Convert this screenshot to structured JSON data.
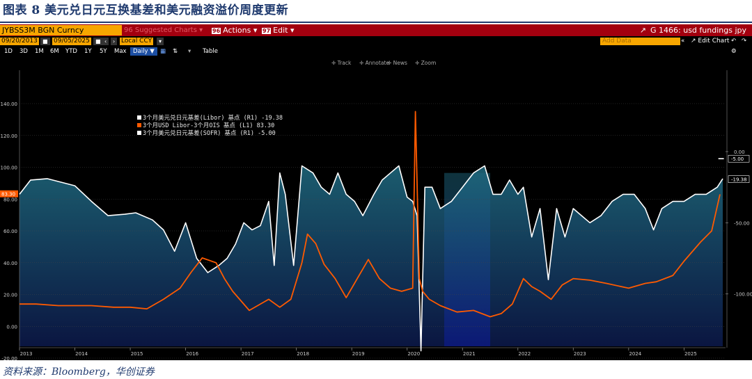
{
  "figure": {
    "title": "图表 8  美元兑日元互换基差和美元融资溢价周度更新",
    "source": "资料来源：Bloomberg，华创证券"
  },
  "toolbar": {
    "ticker": "JYBSS3M BGN Curncy",
    "suggested": "96 Suggested Charts ▾",
    "actions": "Actions ▾",
    "actions_key": "96",
    "edit": "Edit ▾",
    "edit_key": "97",
    "chart_title": "G 1466: usd fundings jpy",
    "date_start": "09/20/2013",
    "date_end": "09/05/2025",
    "currency": "Local CCY",
    "add_data": "Add Data",
    "edit_chart": "Edit Chart",
    "periods": [
      "1D",
      "3D",
      "1M",
      "6M",
      "YTD",
      "1Y",
      "5Y",
      "Max"
    ],
    "frequency": "Daily ▼",
    "table": "Table",
    "tools": [
      "Track",
      "Annotate",
      "News",
      "Zoom"
    ]
  },
  "colors": {
    "background": "#000000",
    "toolbar": "#a3000f",
    "orange": "#f7a600",
    "white_series": "#ffffff",
    "orange_series": "#ff5a00",
    "fill_top": "#1b5c6e",
    "fill_bottom": "#0a1440",
    "shade": "#0c1a8a"
  },
  "chart_data": {
    "type": "line",
    "legend": [
      {
        "label": "3个月美元兑日元基差(Libor) 基点 (R1)",
        "value": "-19.38",
        "color": "#ffffff"
      },
      {
        "label": "3个月USD Libor-3个月OIS 基点 (L1)",
        "value": "83.30",
        "color": "#ff5a00"
      },
      {
        "label": "3个月美元兑日元基差(SOFR) 基点 (R1)",
        "value": "-5.00",
        "color": "#ffffff"
      }
    ],
    "x_ticks": [
      "2013",
      "2014",
      "2015",
      "2016",
      "2017",
      "2018",
      "2019",
      "2020",
      "2021",
      "2022",
      "2023",
      "2024",
      "2025"
    ],
    "x_range": [
      2013.0,
      2025.75
    ],
    "left_axis": {
      "ticks": [
        "-20.00",
        "0.00",
        "20.00",
        "40.00",
        "60.00",
        "80.00",
        "100.00",
        "120.00",
        "140.00"
      ],
      "min": -25,
      "max": 148
    },
    "right_axis": {
      "ticks": [
        "0.00",
        "-50.00",
        "-100.00",
        "-150.00"
      ],
      "min": -150,
      "max": 0
    },
    "last_left": "83.30",
    "last_right_values": [
      "-5.00",
      "-19.38"
    ],
    "shaded_span": [
      2020.67,
      2021.5
    ],
    "series": [
      {
        "name": "3个月USD Libor-3个月OIS 基点 (L1)",
        "axis": "left",
        "x": [
          2013.0,
          2013.3,
          2013.7,
          2014.0,
          2014.3,
          2014.7,
          2015.0,
          2015.3,
          2015.6,
          2015.9,
          2016.1,
          2016.3,
          2016.55,
          2016.7,
          2016.85,
          2017.0,
          2017.15,
          2017.3,
          2017.5,
          2017.7,
          2017.9,
          2018.1,
          2018.2,
          2018.35,
          2018.5,
          2018.7,
          2018.9,
          2019.1,
          2019.3,
          2019.5,
          2019.7,
          2019.9,
          2020.1,
          2020.15,
          2020.22,
          2020.28,
          2020.4,
          2020.6,
          2020.9,
          2021.2,
          2021.5,
          2021.7,
          2021.9,
          2022.0,
          2022.1,
          2022.25,
          2022.4,
          2022.6,
          2022.8,
          2023.0,
          2023.3,
          2023.6,
          2024.0,
          2024.3,
          2024.5,
          2024.8,
          2025.0,
          2025.3,
          2025.5,
          2025.65
        ],
        "y": [
          14,
          14,
          13,
          13,
          13,
          12,
          12,
          11,
          17,
          24,
          34,
          43,
          40,
          30,
          22,
          16,
          10,
          13,
          17,
          12,
          17,
          40,
          58,
          52,
          39,
          30,
          18,
          30,
          42,
          30,
          24,
          22,
          24,
          135,
          30,
          22,
          17,
          13,
          9,
          10,
          6,
          8,
          14,
          22,
          30,
          25,
          22,
          17,
          26,
          30,
          29,
          27,
          24,
          27,
          28,
          32,
          41,
          53,
          60,
          83
        ]
      },
      {
        "name": "3个月美元兑日元基差(Libor) 基点 (R1)",
        "axis": "right",
        "x": [
          2013.0,
          2013.2,
          2013.5,
          2013.8,
          2014.0,
          2014.3,
          2014.6,
          2014.9,
          2015.1,
          2015.4,
          2015.6,
          2015.8,
          2016.0,
          2016.2,
          2016.4,
          2016.6,
          2016.75,
          2016.9,
          2017.05,
          2017.2,
          2017.35,
          2017.5,
          2017.6,
          2017.7,
          2017.8,
          2017.95,
          2018.1,
          2018.3,
          2018.45,
          2018.6,
          2018.75,
          2018.9,
          2019.05,
          2019.2,
          2019.4,
          2019.55,
          2019.7,
          2019.85,
          2020.0,
          2020.1,
          2020.18,
          2020.25,
          2020.32,
          2020.45,
          2020.6,
          2020.8,
          2021.0,
          2021.2,
          2021.4,
          2021.55,
          2021.7,
          2021.85,
          2022.0,
          2022.1,
          2022.25,
          2022.4,
          2022.55,
          2022.7,
          2022.85,
          2023.0,
          2023.15,
          2023.3,
          2023.5,
          2023.7,
          2023.9,
          2024.1,
          2024.3,
          2024.45,
          2024.6,
          2024.8,
          2025.0,
          2025.2,
          2025.4,
          2025.6,
          2025.7
        ],
        "y": [
          -30,
          -20,
          -19,
          -22,
          -24,
          -35,
          -45,
          -44,
          -43,
          -48,
          -55,
          -70,
          -50,
          -75,
          -85,
          -80,
          -75,
          -65,
          -50,
          -55,
          -52,
          -35,
          -80,
          -15,
          -30,
          -80,
          -10,
          -15,
          -25,
          -30,
          -15,
          -30,
          -35,
          -45,
          -30,
          -20,
          -15,
          -10,
          -32,
          -35,
          -45,
          -140,
          -25,
          -25,
          -40,
          -35,
          -25,
          -15,
          -10,
          -30,
          -30,
          -20,
          -30,
          -25,
          -60,
          -40,
          -90,
          -40,
          -60,
          -40,
          -45,
          -50,
          -45,
          -35,
          -30,
          -30,
          -40,
          -55,
          -40,
          -35,
          -35,
          -30,
          -30,
          -25,
          -19
        ]
      },
      {
        "name": "3个月美元兑日元基差(SOFR) 基点 (R1)",
        "axis": "right",
        "x": [
          2025.62,
          2025.72
        ],
        "y": [
          -5,
          -5
        ]
      }
    ]
  }
}
